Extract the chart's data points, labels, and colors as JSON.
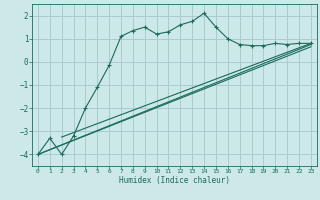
{
  "xlabel": "Humidex (Indice chaleur)",
  "bg_color": "#cce8e8",
  "grid_color": "#aacccc",
  "line_color": "#1a6b5a",
  "xlim": [
    -0.5,
    23.5
  ],
  "ylim": [
    -4.5,
    2.5
  ],
  "yticks": [
    -4,
    -3,
    -2,
    -1,
    0,
    1,
    2
  ],
  "xticks": [
    0,
    1,
    2,
    3,
    4,
    5,
    6,
    7,
    8,
    9,
    10,
    11,
    12,
    13,
    14,
    15,
    16,
    17,
    18,
    19,
    20,
    21,
    22,
    23
  ],
  "curve1_x": [
    0,
    1,
    2,
    3,
    4,
    5,
    6,
    7,
    8,
    9,
    10,
    11,
    12,
    13,
    14,
    15,
    16,
    17,
    18,
    19,
    20,
    21,
    22,
    23
  ],
  "curve1_y": [
    -4.0,
    -3.3,
    -4.0,
    -3.2,
    -2.0,
    -1.1,
    -0.15,
    1.1,
    1.35,
    1.5,
    1.2,
    1.3,
    1.6,
    1.75,
    2.1,
    1.5,
    1.0,
    0.75,
    0.7,
    0.7,
    0.8,
    0.75,
    0.8,
    0.8
  ],
  "line2_x": [
    0,
    23
  ],
  "line2_y": [
    -4.0,
    0.75
  ],
  "line3_x": [
    0,
    23
  ],
  "line3_y": [
    -4.0,
    0.65
  ],
  "line4_x": [
    2,
    23
  ],
  "line4_y": [
    -3.25,
    0.8
  ]
}
